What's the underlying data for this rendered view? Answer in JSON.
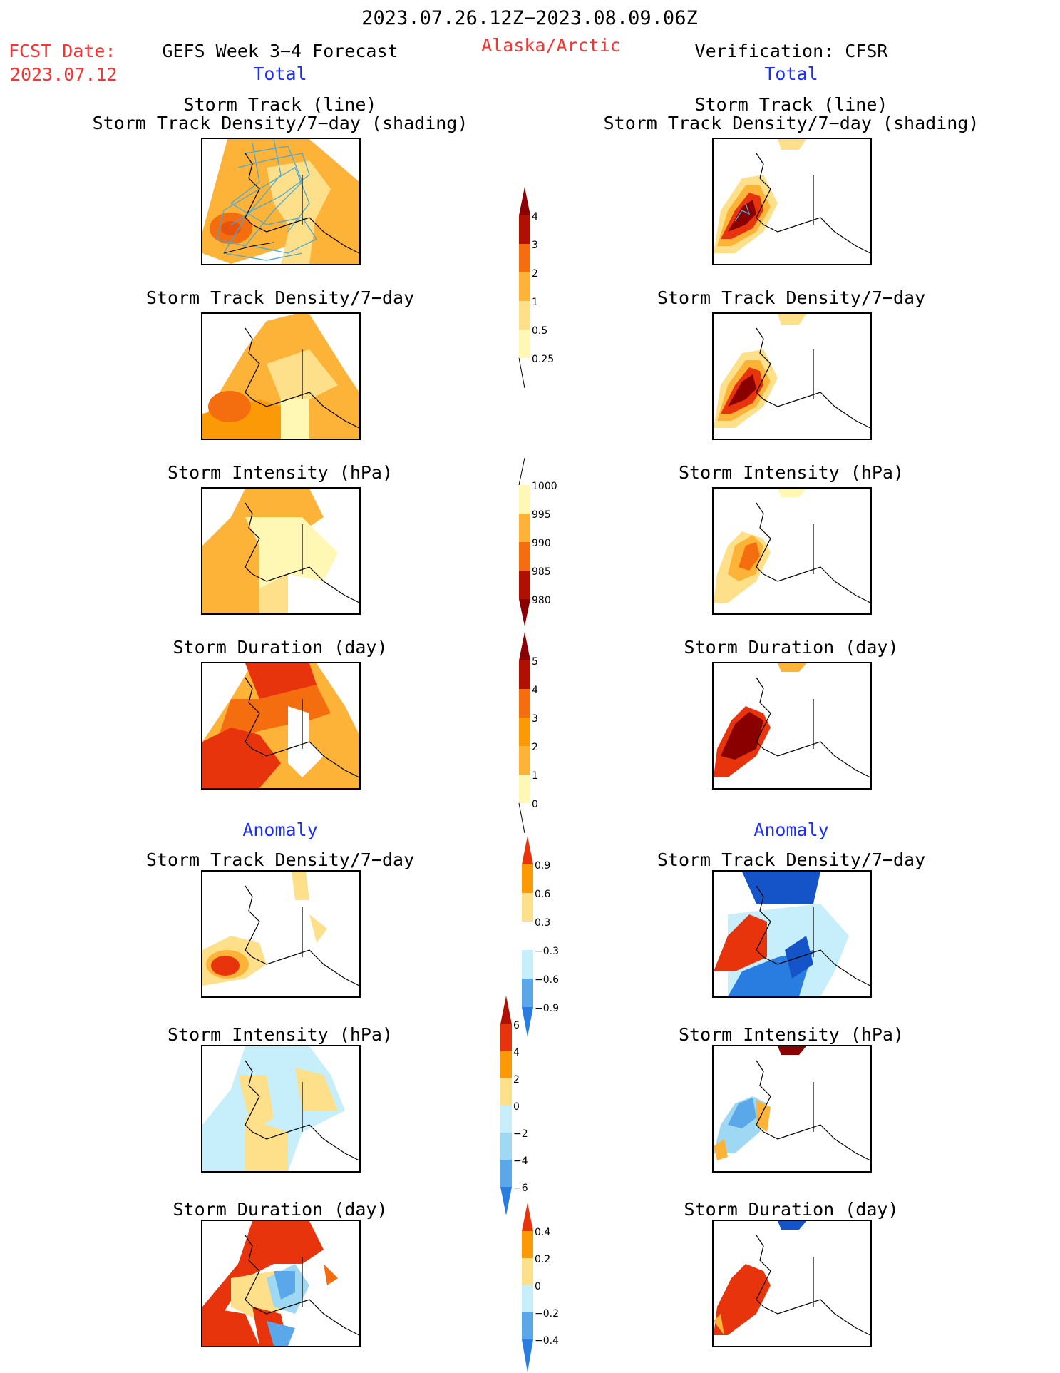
{
  "header": {
    "period": "2023.07.26.12Z−2023.08.09.06Z",
    "fcst_label": "FCST Date:",
    "fcst_date": "2023.07.12",
    "model_title": "GEFS Week 3−4 Forecast",
    "region": "Alaska/Arctic",
    "verification": "Verification: CFSR"
  },
  "columns": {
    "left_total": "Total",
    "right_total": "Total",
    "left_anomaly": "Anomaly",
    "right_anomaly": "Anomaly"
  },
  "panel_titles": {
    "track_line": "Storm Track (line)",
    "track_density_shading": "Storm Track Density/7−day (shading)",
    "track_density": "Storm Track Density/7−day",
    "intensity": "Storm Intensity (hPa)",
    "duration": "Storm Duration (day)"
  },
  "colorbars": {
    "density_total": [
      "4",
      "3",
      "2",
      "1",
      "0.5",
      "0.25"
    ],
    "intensity_total": [
      "1000",
      "995",
      "990",
      "985",
      "980"
    ],
    "duration_total": [
      "5",
      "4",
      "3",
      "2",
      "1",
      "0"
    ],
    "density_anomaly": [
      "0.9",
      "0.6",
      "0.3",
      "−0.3",
      "−0.6",
      "−0.9"
    ],
    "intensity_anomaly": [
      "6",
      "4",
      "2",
      "0",
      "−2",
      "−4",
      "−6"
    ],
    "duration_anomaly": [
      "0.4",
      "0.2",
      "0",
      "−0.2",
      "−0.4"
    ]
  },
  "colors": {
    "warm": [
      "#fff7b3",
      "#fee08b",
      "#fdb338",
      "#fb9a06",
      "#f46d0e",
      "#e8340c",
      "#b01000",
      "#8a0000"
    ],
    "cool": [
      "#c7eefb",
      "#9fd8f2",
      "#5aa8ea",
      "#2a7de0",
      "#1454c8"
    ],
    "track_line": "#4aa8d8",
    "title_red": "#ff3030",
    "title_blue": "#1a2cff"
  }
}
